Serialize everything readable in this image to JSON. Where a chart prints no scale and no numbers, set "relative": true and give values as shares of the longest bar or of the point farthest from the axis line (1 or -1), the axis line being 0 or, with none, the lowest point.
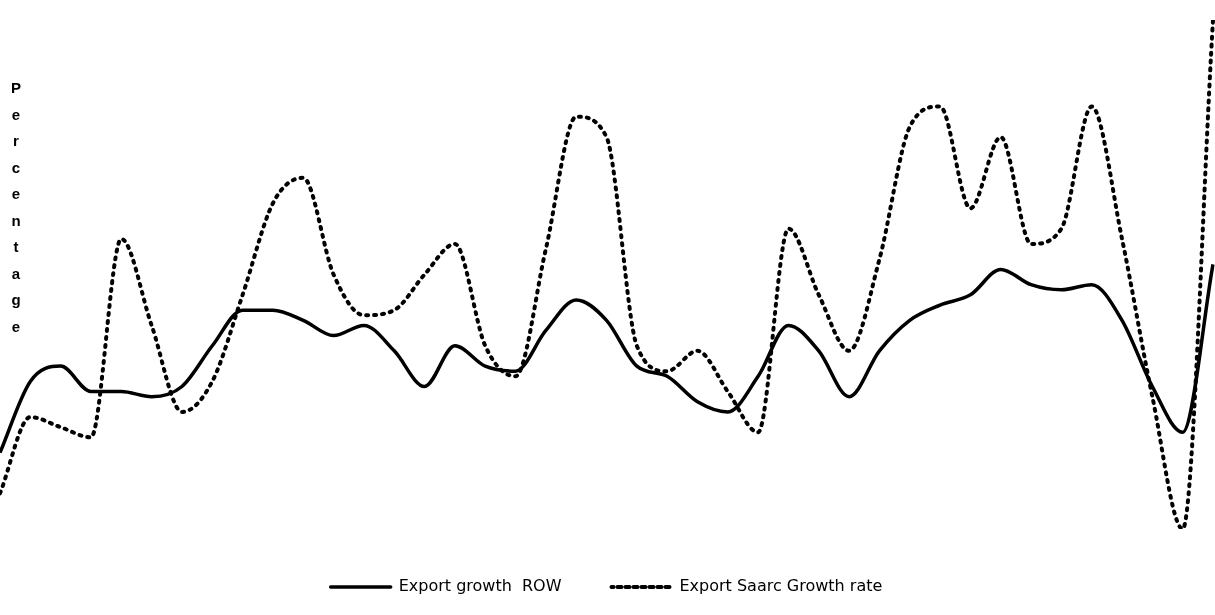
{
  "chart_data": {
    "type": "line",
    "ylabel": "Percentage",
    "relative": true,
    "grid": false,
    "legend": "bottom",
    "marker": "none",
    "categories": [
      null,
      null,
      null,
      null,
      null,
      null,
      null,
      null,
      null,
      null,
      null,
      null,
      null,
      null,
      null,
      null,
      null,
      null,
      null,
      null,
      null,
      null,
      null,
      null,
      null,
      null,
      null,
      null,
      null,
      null,
      null,
      null,
      null,
      null,
      null,
      null,
      null,
      null,
      null,
      null,
      null
    ],
    "series": [
      {
        "name": "Export growth  ROW",
        "color": "#000000",
        "line_style": "solid",
        "values": [
          0.15,
          0.29,
          0.32,
          0.27,
          0.27,
          0.26,
          0.28,
          0.36,
          0.43,
          0.43,
          0.41,
          0.38,
          0.4,
          0.35,
          0.28,
          0.36,
          0.32,
          0.31,
          0.39,
          0.45,
          0.41,
          0.32,
          0.3,
          0.25,
          0.23,
          0.3,
          0.4,
          0.35,
          0.26,
          0.35,
          0.41,
          0.44,
          0.46,
          0.51,
          0.48,
          0.47,
          0.48,
          0.41,
          0.28,
          0.19,
          0.52
        ]
      },
      {
        "name": "Export Saarc Growth rate",
        "color": "#000000",
        "line_style": "dotted",
        "values": [
          0.07,
          0.22,
          0.2,
          0.18,
          0.57,
          0.4,
          0.23,
          0.29,
          0.46,
          0.64,
          0.69,
          0.5,
          0.42,
          0.43,
          0.5,
          0.56,
          0.36,
          0.3,
          0.55,
          0.81,
          0.77,
          0.36,
          0.31,
          0.35,
          0.27,
          0.19,
          0.59,
          0.46,
          0.35,
          0.53,
          0.79,
          0.83,
          0.63,
          0.77,
          0.56,
          0.59,
          0.83,
          0.57,
          0.26,
          0,
          1
        ]
      }
    ]
  }
}
